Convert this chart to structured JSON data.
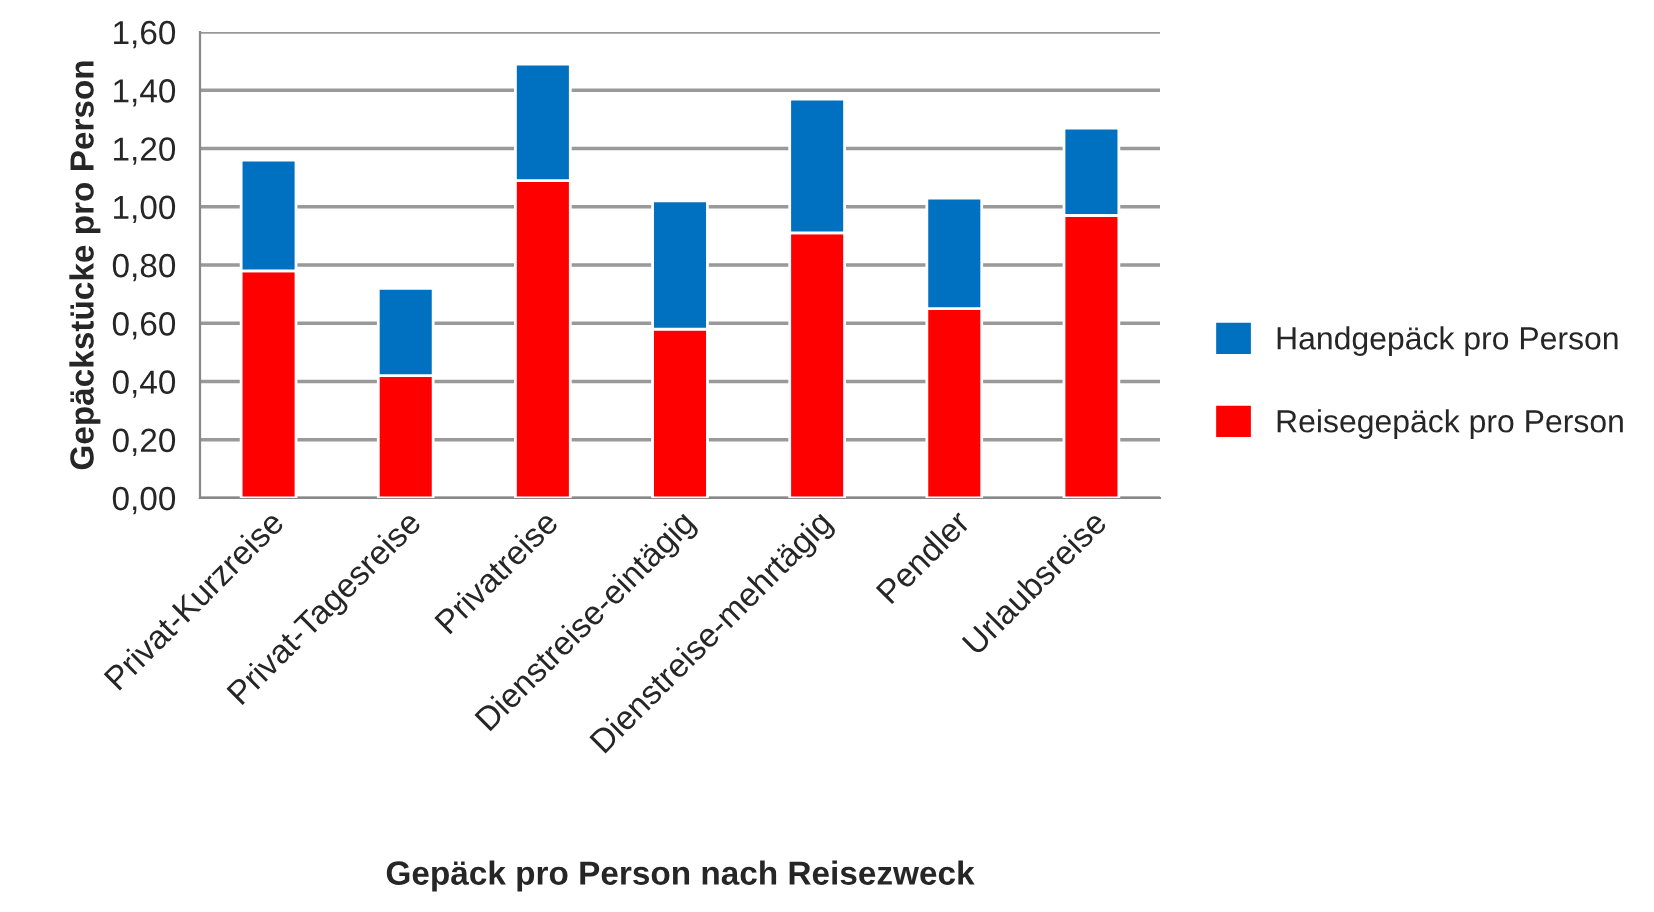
{
  "chart_data": {
    "type": "bar",
    "stacked": true,
    "xlabel": "Gepäck pro Person nach Reisezweck",
    "ylabel": "Gepäckstücke pro Person",
    "categories": [
      "Privat-Kurzreise",
      "Privat-Tagesreise",
      "Privatreise",
      "Dienstreise-eintägig",
      "Dienstreise-mehrtägig",
      "Pendler",
      "Urlaubsreise"
    ],
    "series": [
      {
        "name": "Reisegepäck pro Person",
        "color": "#ff0000",
        "values": [
          0.78,
          0.42,
          1.09,
          0.58,
          0.91,
          0.65,
          0.97
        ]
      },
      {
        "name": "Handgepäck pro Person",
        "color": "#0070c0",
        "values": [
          0.38,
          0.3,
          0.4,
          0.44,
          0.46,
          0.38,
          0.3
        ]
      }
    ],
    "ylim": [
      0,
      1.6
    ],
    "yticks": [
      {
        "value": 0,
        "label": "0,00"
      },
      {
        "value": 0.2,
        "label": "0,20"
      },
      {
        "value": 0.4,
        "label": "0,40"
      },
      {
        "value": 0.6,
        "label": "0,60"
      },
      {
        "value": 0.8,
        "label": "0,80"
      },
      {
        "value": 1.0,
        "label": "1,00"
      },
      {
        "value": 1.2,
        "label": "1,20"
      },
      {
        "value": 1.4,
        "label": "1,40"
      },
      {
        "value": 1.6,
        "label": "1,60"
      }
    ],
    "grid": "y",
    "legend": "right"
  }
}
